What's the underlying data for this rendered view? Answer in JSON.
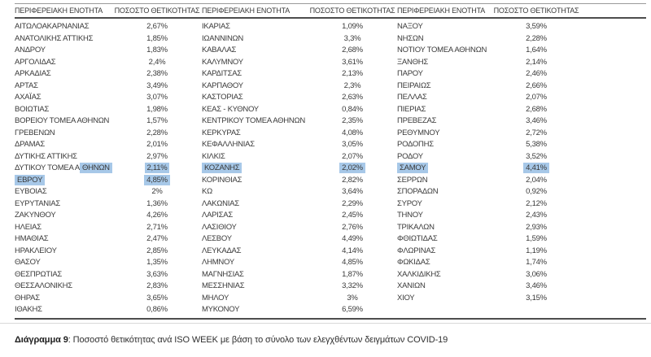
{
  "caption": {
    "label": "Διάγραμμα 9",
    "text": ": Ποσοστό θετικότητας ανά ISO WEEK με βάση το σύνολο των ελεγχθέντων δειγμάτων COVID-19"
  },
  "table": {
    "header": {
      "region": "ΠΕΡΙΦΕΡΕΙΑΚΗ ΕΝΟΤΗΤΑ",
      "pct": "ΠΟΣΟΣΤΟ ΘΕΤΙΚΟΤΗΤΑΣ"
    },
    "highlight_color": "#a7c8e8",
    "columns": [
      {
        "rows": [
          {
            "name": "ΑΙΤΩΛΟΑΚΑΡΝΑΝΙΑΣ",
            "value": "2,67%"
          },
          {
            "name": "ΑΝΑΤΟΛΙΚΗΣ ΑΤΤΙΚΗΣ",
            "value": "1,85%"
          },
          {
            "name": "ΑΝΔΡΟΥ",
            "value": "1,83%"
          },
          {
            "name": "ΑΡΓΟΛΙΔΑΣ",
            "value": "2,4%"
          },
          {
            "name": "ΑΡΚΑΔΙΑΣ",
            "value": "2,38%"
          },
          {
            "name": "ΑΡΤΑΣ",
            "value": "3,49%"
          },
          {
            "name": "ΑΧΑΪΑΣ",
            "value": "3,07%"
          },
          {
            "name": "ΒΟΙΩΤΙΑΣ",
            "value": "1,98%"
          },
          {
            "name": "ΒΟΡΕΙΟΥ ΤΟΜΕΑ ΑΘΗΝΩΝ",
            "value": "1,57%"
          },
          {
            "name": "ΓΡΕΒΕΝΩΝ",
            "value": "2,28%"
          },
          {
            "name": "ΔΡΑΜΑΣ",
            "value": "2,01%"
          },
          {
            "name": "ΔΥΤΙΚΗΣ ΑΤΤΙΚΗΣ",
            "value": "2,97%"
          },
          {
            "name": "ΔΥΤΙΚΟΥ ΤΟΜΕΑ ΑΘΗΝΩΝ",
            "value": "2,11%",
            "highlight": "partial",
            "name_prefix": "ΔΥΤΙΚΟΥ ΤΟΜΕΑ Α",
            "name_highlight": "ΘΗΝΩΝ"
          },
          {
            "name": "ΕΒΡΟΥ",
            "value": "4,85%",
            "highlight": "full"
          },
          {
            "name": "ΕΥΒΟΙΑΣ",
            "value": "2%"
          },
          {
            "name": "ΕΥΡΥΤΑΝΙΑΣ",
            "value": "1,36%"
          },
          {
            "name": "ΖΑΚΥΝΘΟΥ",
            "value": "4,26%"
          },
          {
            "name": "ΗΛΕΙΑΣ",
            "value": "2,71%"
          },
          {
            "name": "ΗΜΑΘΙΑΣ",
            "value": "2,47%"
          },
          {
            "name": "ΗΡΑΚΛΕΙΟΥ",
            "value": "2,85%"
          },
          {
            "name": "ΘΑΣΟΥ",
            "value": "1,35%"
          },
          {
            "name": "ΘΕΣΠΡΩΤΙΑΣ",
            "value": "3,63%"
          },
          {
            "name": "ΘΕΣΣΑΛΟΝΙΚΗΣ",
            "value": "2,83%"
          },
          {
            "name": "ΘΗΡΑΣ",
            "value": "3,65%"
          },
          {
            "name": "ΙΘΑΚΗΣ",
            "value": "0,86%"
          }
        ]
      },
      {
        "rows": [
          {
            "name": "ΙΚΑΡΙΑΣ",
            "value": "1,09%"
          },
          {
            "name": "ΙΩΑΝΝΙΝΩΝ",
            "value": "3,3%"
          },
          {
            "name": "ΚΑΒΑΛΑΣ",
            "value": "2,68%"
          },
          {
            "name": "ΚΑΛΥΜΝΟΥ",
            "value": "3,61%"
          },
          {
            "name": "ΚΑΡΔΙΤΣΑΣ",
            "value": "2,13%"
          },
          {
            "name": "ΚΑΡΠΑΘΟΥ",
            "value": "2,3%"
          },
          {
            "name": "ΚΑΣΤΟΡΙΑΣ",
            "value": "2,63%"
          },
          {
            "name": "ΚΕΑΣ - ΚΥΘΝΟΥ",
            "value": "0,84%"
          },
          {
            "name": "ΚΕΝΤΡΙΚΟΥ ΤΟΜΕΑ ΑΘΗΝΩΝ",
            "value": "2,35%"
          },
          {
            "name": "ΚΕΡΚΥΡΑΣ",
            "value": "4,08%"
          },
          {
            "name": "ΚΕΦΑΛΛΗΝΙΑΣ",
            "value": "3,05%"
          },
          {
            "name": "ΚΙΛΚΙΣ",
            "value": "2,07%"
          },
          {
            "name": "ΚΟΖΑΝΗΣ",
            "value": "2,02%",
            "highlight": "full"
          },
          {
            "name": "ΚΟΡΙΝΘΙΑΣ",
            "value": "2,82%"
          },
          {
            "name": "ΚΩ",
            "value": "3,64%"
          },
          {
            "name": "ΛΑΚΩΝΙΑΣ",
            "value": "2,29%"
          },
          {
            "name": "ΛΑΡΙΣΑΣ",
            "value": "2,45%"
          },
          {
            "name": "ΛΑΣΙΘΙΟΥ",
            "value": "2,76%"
          },
          {
            "name": "ΛΕΣΒΟΥ",
            "value": "4,49%"
          },
          {
            "name": "ΛΕΥΚΑΔΑΣ",
            "value": "4,14%"
          },
          {
            "name": "ΛΗΜΝΟΥ",
            "value": "4,85%"
          },
          {
            "name": "ΜΑΓΝΗΣΙΑΣ",
            "value": "1,87%"
          },
          {
            "name": "ΜΕΣΣΗΝΙΑΣ",
            "value": "3,32%"
          },
          {
            "name": "ΜΗΛΟΥ",
            "value": "3%"
          },
          {
            "name": "ΜΥΚΟΝΟΥ",
            "value": "6,59%"
          }
        ]
      },
      {
        "rows": [
          {
            "name": "ΝΑΞΟΥ",
            "value": "3,59%"
          },
          {
            "name": "ΝΗΣΩΝ",
            "value": "2,28%"
          },
          {
            "name": "ΝΟΤΙΟΥ ΤΟΜΕΑ ΑΘΗΝΩΝ",
            "value": "1,64%"
          },
          {
            "name": "ΞΑΝΘΗΣ",
            "value": "2,14%"
          },
          {
            "name": "ΠΑΡΟΥ",
            "value": "2,46%"
          },
          {
            "name": "ΠΕΙΡΑΙΩΣ",
            "value": "2,66%"
          },
          {
            "name": "ΠΕΛΛΑΣ",
            "value": "2,07%"
          },
          {
            "name": "ΠΙΕΡΙΑΣ",
            "value": "2,68%"
          },
          {
            "name": "ΠΡΕΒΕΖΑΣ",
            "value": "3,46%"
          },
          {
            "name": "ΡΕΘΥΜΝΟΥ",
            "value": "2,72%"
          },
          {
            "name": "ΡΟΔΟΠΗΣ",
            "value": "5,38%"
          },
          {
            "name": "ΡΟΔΟΥ",
            "value": "3,52%"
          },
          {
            "name": "ΣΑΜΟΥ",
            "value": "4,41%",
            "highlight": "full"
          },
          {
            "name": "ΣΕΡΡΩΝ",
            "value": "2,04%"
          },
          {
            "name": "ΣΠΟΡΑΔΩΝ",
            "value": "0,92%"
          },
          {
            "name": "ΣΥΡΟΥ",
            "value": "2,12%"
          },
          {
            "name": "ΤΗΝΟΥ",
            "value": "2,43%"
          },
          {
            "name": "ΤΡΙΚΑΛΩΝ",
            "value": "2,93%"
          },
          {
            "name": "ΦΘΙΩΤΙΔΑΣ",
            "value": "1,59%"
          },
          {
            "name": "ΦΛΩΡΙΝΑΣ",
            "value": "1,19%"
          },
          {
            "name": "ΦΩΚΙΔΑΣ",
            "value": "1,74%"
          },
          {
            "name": "ΧΑΛΚΙΔΙΚΗΣ",
            "value": "3,06%"
          },
          {
            "name": "ΧΑΝΙΩΝ",
            "value": "3,46%"
          },
          {
            "name": "ΧΙΟΥ",
            "value": "3,15%"
          }
        ]
      }
    ]
  }
}
